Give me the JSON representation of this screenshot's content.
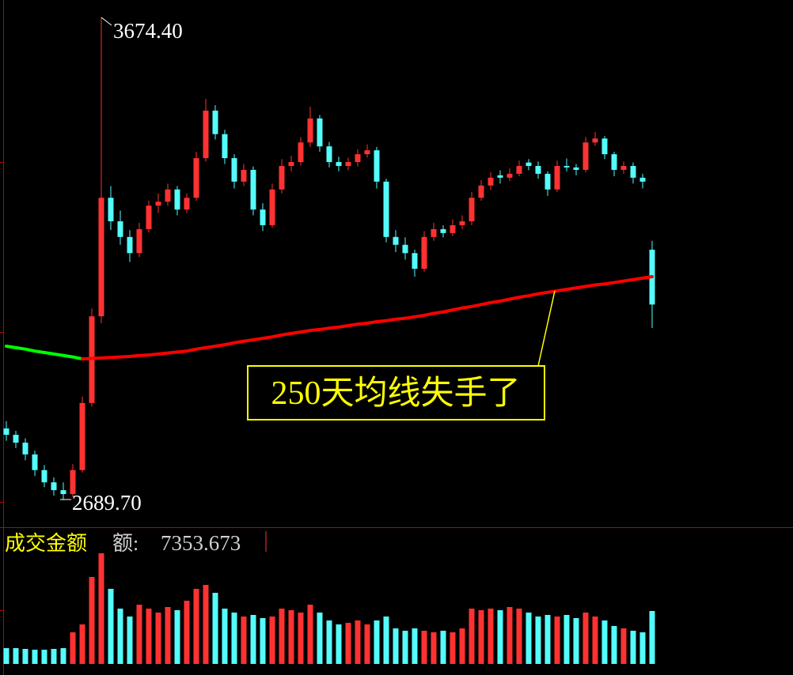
{
  "chart_data": {
    "type": "candlestick",
    "ylim": [
      2636.6,
      3709.9
    ],
    "vlim": [
      0,
      18877
    ],
    "up_color": "#ff3232",
    "down_color": "#54fcfc",
    "ohlc": [
      [
        2835,
        2850,
        2810,
        2822
      ],
      [
        2822,
        2830,
        2795,
        2806
      ],
      [
        2806,
        2815,
        2770,
        2782
      ],
      [
        2782,
        2790,
        2738,
        2750
      ],
      [
        2750,
        2760,
        2715,
        2725
      ],
      [
        2725,
        2735,
        2698,
        2709
      ],
      [
        2709,
        2725,
        2689.7,
        2701
      ],
      [
        2701,
        2762,
        2695,
        2750
      ],
      [
        2750,
        2900,
        2745,
        2887
      ],
      [
        2887,
        3080,
        2880,
        3064
      ],
      [
        3064,
        3674.4,
        3050,
        3306
      ],
      [
        3306,
        3330,
        3240,
        3258
      ],
      [
        3258,
        3280,
        3210,
        3226
      ],
      [
        3226,
        3240,
        3175,
        3193
      ],
      [
        3193,
        3255,
        3185,
        3242
      ],
      [
        3242,
        3300,
        3235,
        3290
      ],
      [
        3290,
        3315,
        3275,
        3298
      ],
      [
        3298,
        3335,
        3290,
        3323
      ],
      [
        3323,
        3330,
        3270,
        3282
      ],
      [
        3282,
        3315,
        3275,
        3306
      ],
      [
        3306,
        3400,
        3300,
        3387
      ],
      [
        3387,
        3508,
        3380,
        3484
      ],
      [
        3484,
        3495,
        3425,
        3436
      ],
      [
        3436,
        3445,
        3375,
        3387
      ],
      [
        3387,
        3395,
        3325,
        3339
      ],
      [
        3339,
        3375,
        3330,
        3363
      ],
      [
        3363,
        3370,
        3270,
        3282
      ],
      [
        3282,
        3295,
        3238,
        3250
      ],
      [
        3250,
        3335,
        3245,
        3323
      ],
      [
        3323,
        3385,
        3315,
        3371
      ],
      [
        3371,
        3392,
        3360,
        3379
      ],
      [
        3379,
        3430,
        3372,
        3419
      ],
      [
        3419,
        3492,
        3410,
        3468
      ],
      [
        3468,
        3475,
        3400,
        3411
      ],
      [
        3411,
        3420,
        3368,
        3379
      ],
      [
        3379,
        3390,
        3360,
        3371
      ],
      [
        3371,
        3388,
        3362,
        3379
      ],
      [
        3379,
        3405,
        3370,
        3395
      ],
      [
        3395,
        3415,
        3388,
        3403
      ],
      [
        3403,
        3410,
        3325,
        3339
      ],
      [
        3339,
        3345,
        3215,
        3226
      ],
      [
        3226,
        3240,
        3195,
        3210
      ],
      [
        3210,
        3225,
        3180,
        3193
      ],
      [
        3193,
        3200,
        3145,
        3161
      ],
      [
        3161,
        3238,
        3155,
        3226
      ],
      [
        3226,
        3255,
        3218,
        3242
      ],
      [
        3242,
        3250,
        3225,
        3234
      ],
      [
        3234,
        3262,
        3228,
        3250
      ],
      [
        3250,
        3270,
        3242,
        3258
      ],
      [
        3258,
        3318,
        3250,
        3306
      ],
      [
        3306,
        3342,
        3300,
        3331
      ],
      [
        3331,
        3358,
        3322,
        3347
      ],
      [
        3352,
        3362,
        3335,
        3347
      ],
      [
        3347,
        3366,
        3340,
        3355
      ],
      [
        3355,
        3382,
        3350,
        3371
      ],
      [
        3378,
        3385,
        3362,
        3371
      ],
      [
        3371,
        3380,
        3345,
        3355
      ],
      [
        3355,
        3360,
        3310,
        3323
      ],
      [
        3323,
        3382,
        3318,
        3371
      ],
      [
        3371,
        3386,
        3360,
        3368
      ],
      [
        3368,
        3375,
        3352,
        3363
      ],
      [
        3363,
        3430,
        3358,
        3419
      ],
      [
        3419,
        3440,
        3412,
        3427
      ],
      [
        3427,
        3432,
        3385,
        3395
      ],
      [
        3395,
        3400,
        3350,
        3363
      ],
      [
        3363,
        3380,
        3355,
        3371
      ],
      [
        3371,
        3378,
        3335,
        3347
      ],
      [
        3347,
        3355,
        3325,
        3339
      ],
      [
        3200,
        3218,
        3040,
        3088
      ]
    ],
    "volume": [
      2195,
      2195,
      2085,
      1976,
      1976,
      2085,
      2195,
      4390,
      5488,
      12073,
      15365,
      10426,
      7683,
      6585,
      8231,
      7683,
      7134,
      7902,
      7463,
      8780,
      10426,
      10975,
      9878,
      7683,
      7134,
      6585,
      6805,
      6366,
      6585,
      7683,
      7463,
      7134,
      8231,
      7134,
      6036,
      5488,
      5707,
      6036,
      5488,
      6036,
      6585,
      4939,
      4610,
      4939,
      4610,
      4390,
      4610,
      4390,
      4939,
      7683,
      7463,
      7683,
      7463,
      7902,
      7683,
      7134,
      6585,
      6805,
      6585,
      6805,
      6366,
      7134,
      6585,
      6036,
      5268,
      4939,
      4610,
      4390,
      7353.673
    ],
    "ma_series": [
      {
        "color": "#00ff00",
        "values": [
          3003,
          3000,
          2997,
          2993,
          2990,
          2987,
          2984,
          2981,
          2977,
          null,
          null,
          null,
          null,
          null,
          null,
          null,
          null,
          null,
          null,
          null,
          null,
          null,
          null,
          null,
          null,
          null,
          null,
          null,
          null,
          null,
          null,
          null,
          null,
          null,
          null,
          null,
          null,
          null,
          null,
          null,
          null,
          null,
          null,
          null,
          null,
          null,
          null,
          null,
          null,
          null,
          null,
          null,
          null,
          null,
          null,
          null,
          null,
          null,
          null,
          null,
          null,
          null,
          null,
          null,
          null,
          null,
          null,
          null,
          null
        ]
      },
      {
        "color": "#ff0000",
        "values": [
          null,
          null,
          null,
          null,
          null,
          null,
          null,
          null,
          2977,
          2978,
          2979,
          2980,
          2981,
          2982,
          2984,
          2985,
          2987,
          2989,
          2991,
          2993,
          2997,
          3000,
          3003,
          3006,
          3010,
          3013,
          3016,
          3019,
          3022,
          3026,
          3029,
          3032,
          3035,
          3037,
          3040,
          3042,
          3045,
          3048,
          3050,
          3053,
          3055,
          3058,
          3060,
          3063,
          3066,
          3070,
          3073,
          3077,
          3081,
          3084,
          3088,
          3092,
          3095,
          3099,
          3103,
          3106,
          3110,
          3113,
          3116,
          3119,
          3122,
          3125,
          3128,
          3130,
          3133,
          3136,
          3139,
          3142,
          3145
        ]
      }
    ],
    "high_label": "3674.40",
    "low_label": "2689.70",
    "callout": "250天均线失手了",
    "volume_title": "成交金额",
    "volume_prefix": "额:"
  }
}
